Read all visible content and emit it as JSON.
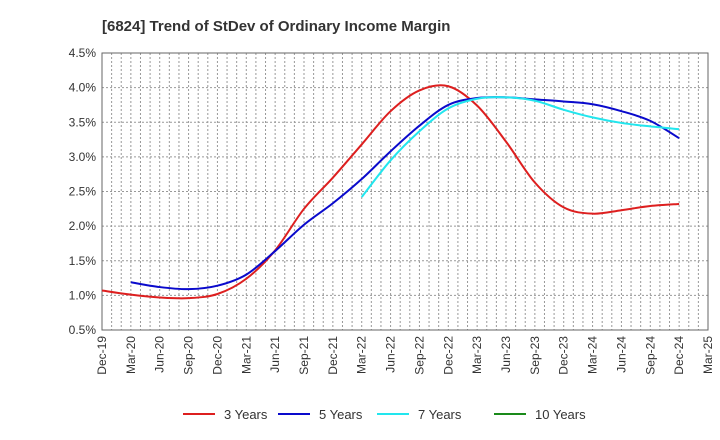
{
  "chart_data": {
    "type": "line",
    "title": "[6824]  Trend of StDev of Ordinary Income Margin",
    "xlabel": "",
    "ylabel": "",
    "x_ticks": [
      "Dec-19",
      "Mar-20",
      "Jun-20",
      "Sep-20",
      "Dec-20",
      "Mar-21",
      "Jun-21",
      "Sep-21",
      "Dec-21",
      "Mar-22",
      "Jun-22",
      "Sep-22",
      "Dec-22",
      "Mar-23",
      "Jun-23",
      "Sep-23",
      "Dec-23",
      "Mar-24",
      "Jun-24",
      "Sep-24",
      "Dec-24",
      "Mar-25"
    ],
    "y_ticks": [
      "0.5%",
      "1.0%",
      "1.5%",
      "2.0%",
      "2.5%",
      "3.0%",
      "3.5%",
      "4.0%",
      "4.5%"
    ],
    "ylim": [
      0.5,
      4.5
    ],
    "grid": true,
    "legend_position": "bottom",
    "series": [
      {
        "name": "3 Years",
        "color": "#dd1f1f",
        "points": [
          [
            "Dec-19",
            1.07
          ],
          [
            "Mar-20",
            1.01
          ],
          [
            "Jun-20",
            0.97
          ],
          [
            "Sep-20",
            0.96
          ],
          [
            "Dec-20",
            1.02
          ],
          [
            "Mar-21",
            1.24
          ],
          [
            "Jun-21",
            1.65
          ],
          [
            "Sep-21",
            2.25
          ],
          [
            "Dec-21",
            2.7
          ],
          [
            "Mar-22",
            3.18
          ],
          [
            "Jun-22",
            3.66
          ],
          [
            "Sep-22",
            3.96
          ],
          [
            "Dec-22",
            4.02
          ],
          [
            "Mar-23",
            3.74
          ],
          [
            "Jun-23",
            3.22
          ],
          [
            "Sep-23",
            2.63
          ],
          [
            "Dec-23",
            2.27
          ],
          [
            "Mar-24",
            2.18
          ],
          [
            "Jun-24",
            2.23
          ],
          [
            "Sep-24",
            2.29
          ],
          [
            "Dec-24",
            2.32
          ]
        ]
      },
      {
        "name": "5 Years",
        "color": "#0a0acc",
        "points": [
          [
            "Mar-20",
            1.19
          ],
          [
            "Jun-20",
            1.12
          ],
          [
            "Sep-20",
            1.09
          ],
          [
            "Dec-20",
            1.14
          ],
          [
            "Mar-21",
            1.3
          ],
          [
            "Jun-21",
            1.64
          ],
          [
            "Sep-21",
            2.02
          ],
          [
            "Dec-21",
            2.33
          ],
          [
            "Mar-22",
            2.68
          ],
          [
            "Jun-22",
            3.08
          ],
          [
            "Sep-22",
            3.45
          ],
          [
            "Dec-22",
            3.75
          ],
          [
            "Mar-23",
            3.85
          ],
          [
            "Jun-23",
            3.86
          ],
          [
            "Sep-23",
            3.83
          ],
          [
            "Dec-23",
            3.8
          ],
          [
            "Mar-24",
            3.76
          ],
          [
            "Jun-24",
            3.66
          ],
          [
            "Sep-24",
            3.52
          ],
          [
            "Dec-24",
            3.27
          ]
        ]
      },
      {
        "name": "7 Years",
        "color": "#22e6ee",
        "points": [
          [
            "Mar-22",
            2.42
          ],
          [
            "Jun-22",
            2.95
          ],
          [
            "Sep-22",
            3.37
          ],
          [
            "Dec-22",
            3.7
          ],
          [
            "Mar-23",
            3.84
          ],
          [
            "Jun-23",
            3.86
          ],
          [
            "Sep-23",
            3.81
          ],
          [
            "Dec-23",
            3.68
          ],
          [
            "Mar-24",
            3.57
          ],
          [
            "Jun-24",
            3.49
          ],
          [
            "Sep-24",
            3.44
          ],
          [
            "Dec-24",
            3.4
          ]
        ]
      },
      {
        "name": "10 Years",
        "color": "#1a8a1a",
        "points": []
      }
    ]
  }
}
